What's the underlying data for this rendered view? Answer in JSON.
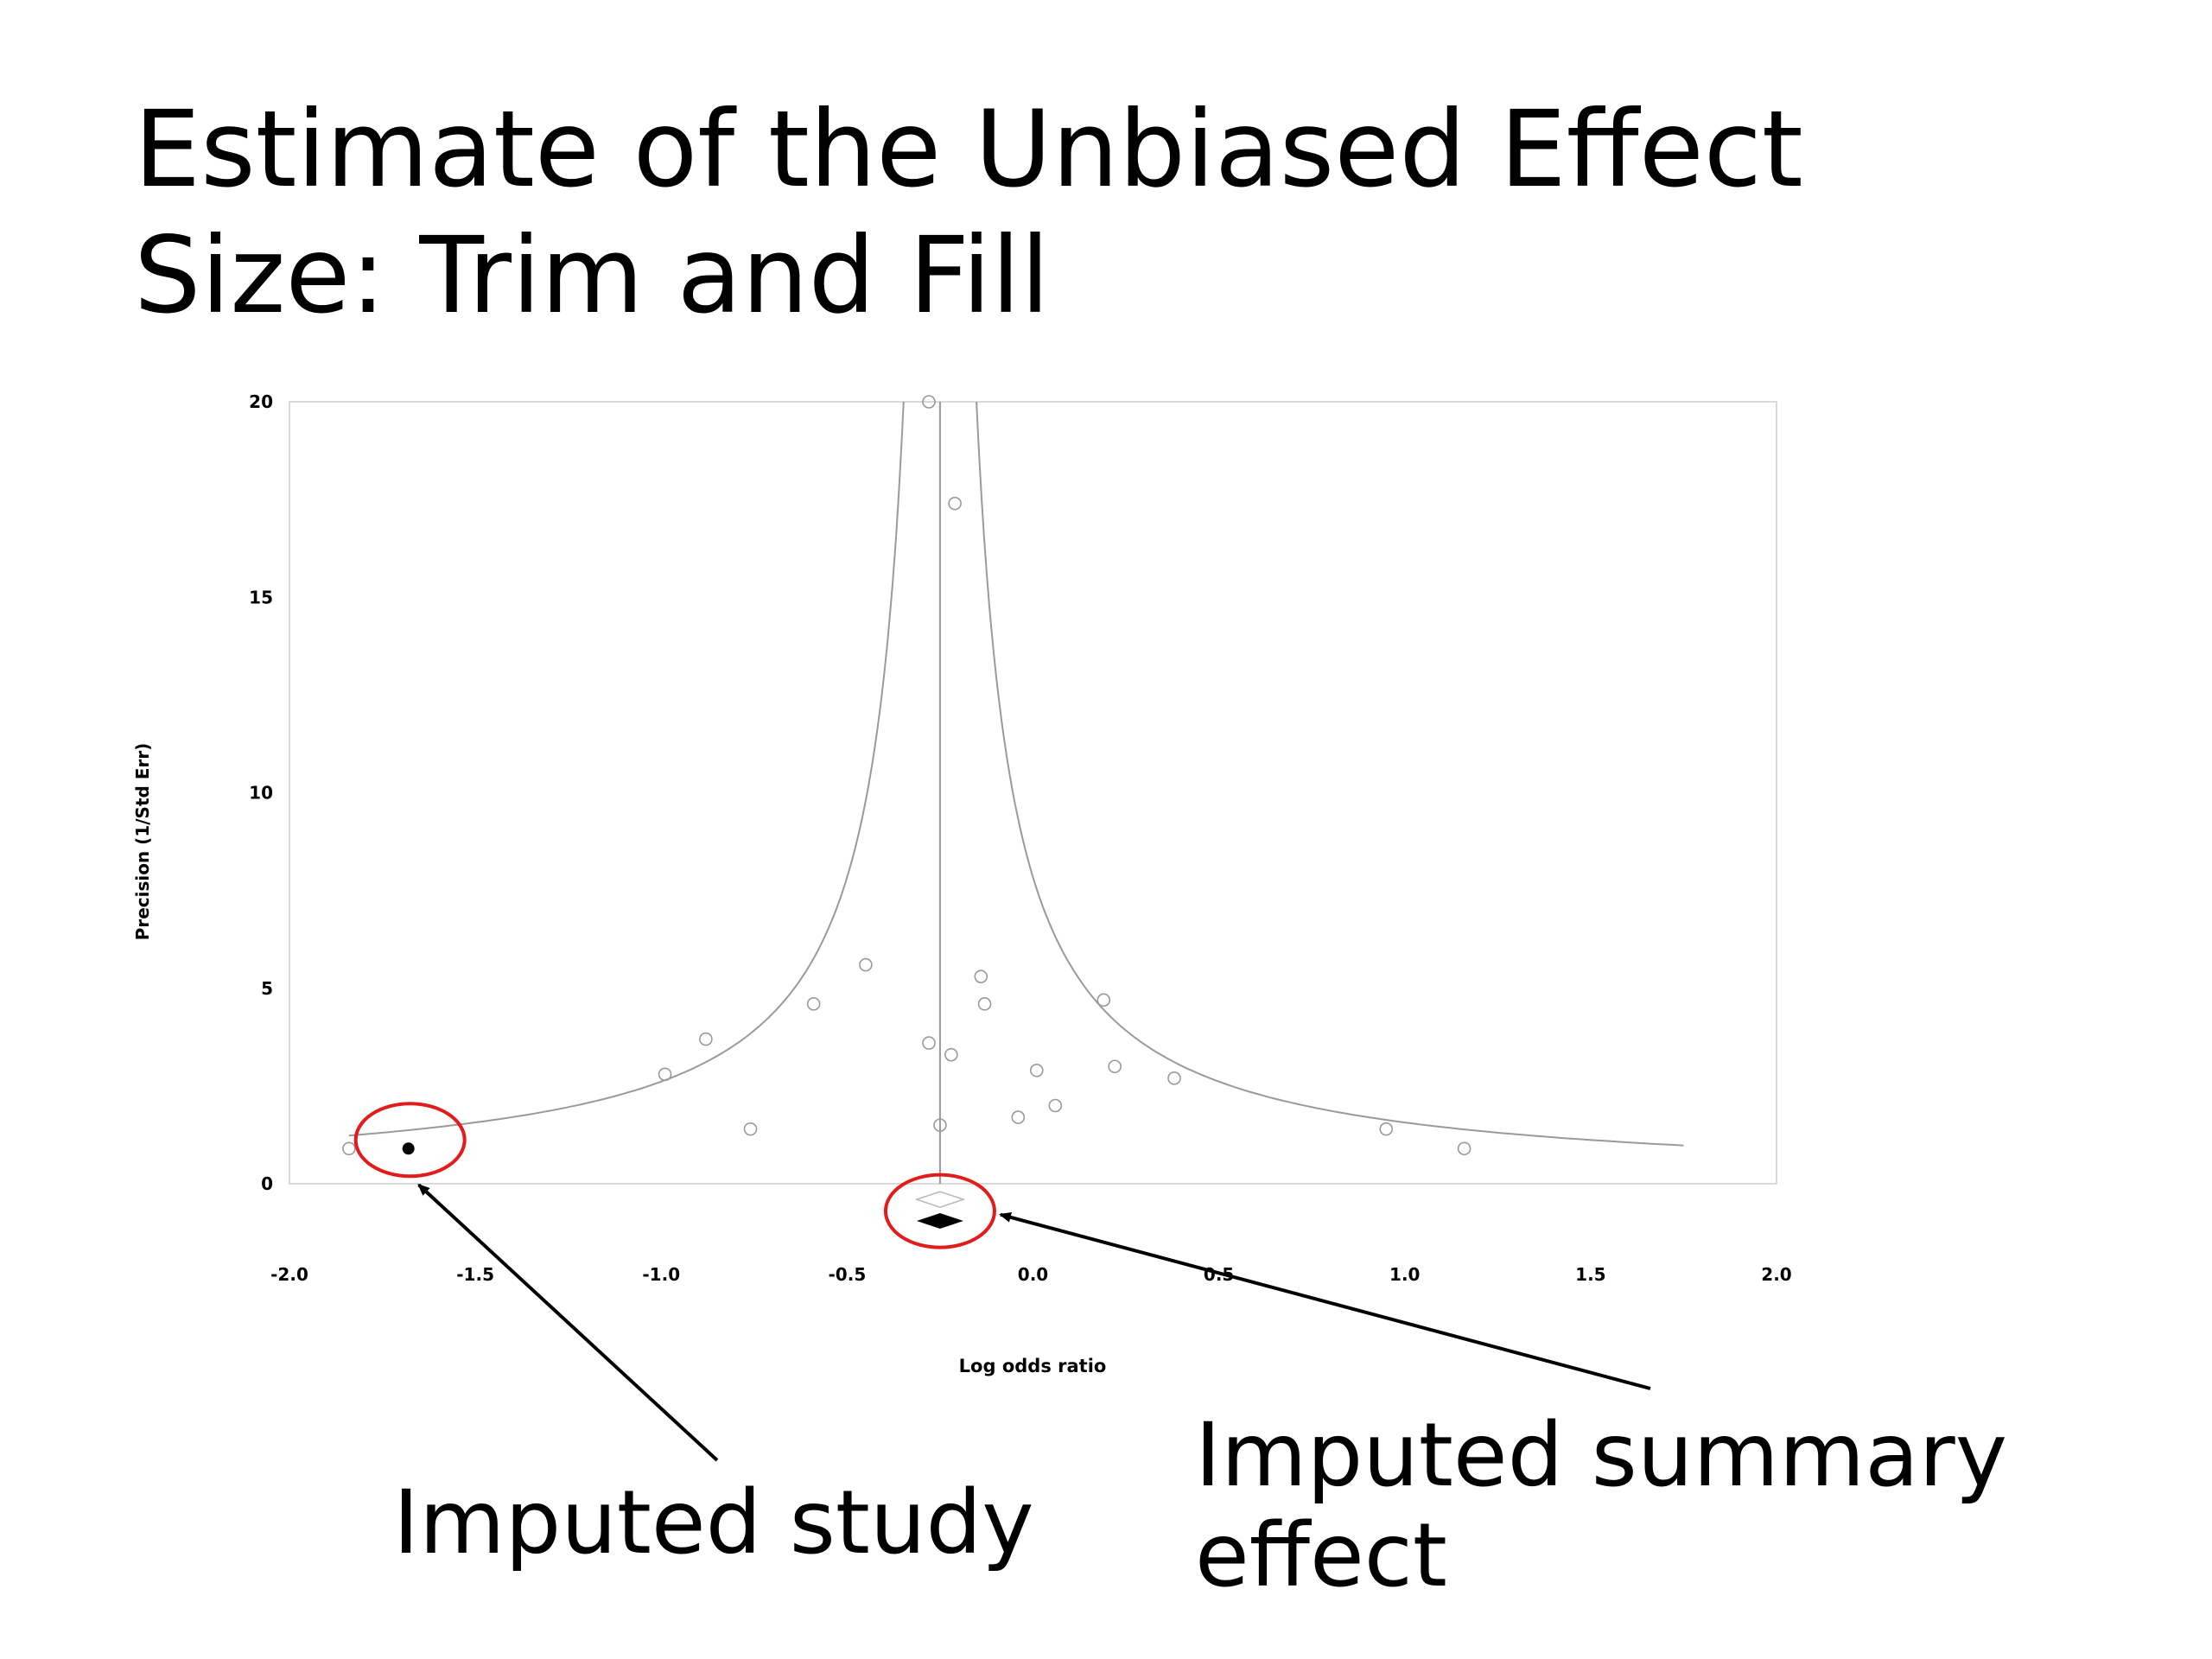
{
  "slide": {
    "title_line1": "Estimate of the Unbiased Effect",
    "title_line2": "Size: Trim and Fill"
  },
  "annotations": {
    "imputed_study": "Imputed study",
    "imputed_summary_line1": "Imputed summary",
    "imputed_summary_line2": "effect"
  },
  "colors": {
    "highlight_circle": "#e31b1b",
    "observed_marker": "#999999",
    "imputed_marker": "#000000",
    "funnel_line": "#9a9a9a"
  },
  "chart_data": {
    "type": "scatter",
    "xlabel": "Log odds ratio",
    "ylabel": "Precision (1/Std Err)",
    "xlim": [
      -2.0,
      2.0
    ],
    "ylim": [
      0,
      20
    ],
    "x_ticks": [
      "-2.0",
      "-1.5",
      "-1.0",
      "-0.5",
      "0.0",
      "0.5",
      "1.0",
      "1.5",
      "2.0"
    ],
    "y_ticks": [
      "0",
      "5",
      "10",
      "15",
      "20"
    ],
    "grid": false,
    "funnel_center": -0.25,
    "series": [
      {
        "marker": "open-circle",
        "points": [
          [
            -0.28,
            20.0
          ],
          [
            -0.21,
            17.4
          ],
          [
            -0.45,
            5.6
          ],
          [
            -0.59,
            4.6
          ],
          [
            -0.88,
            3.7
          ],
          [
            -0.99,
            2.8
          ],
          [
            -0.76,
            1.4
          ],
          [
            -0.28,
            3.6
          ],
          [
            -0.22,
            3.3
          ],
          [
            -0.14,
            5.3
          ],
          [
            -0.13,
            4.6
          ],
          [
            0.19,
            4.7
          ],
          [
            0.01,
            2.9
          ],
          [
            0.22,
            3.0
          ],
          [
            0.38,
            2.7
          ],
          [
            0.06,
            2.0
          ],
          [
            -0.04,
            1.7
          ],
          [
            -0.25,
            1.5
          ],
          [
            0.95,
            1.4
          ],
          [
            1.16,
            0.9
          ],
          [
            -1.84,
            0.9
          ]
        ]
      },
      {
        "marker": "filled-circle",
        "points": [
          [
            -1.68,
            0.9
          ]
        ]
      }
    ],
    "summary_effects": [
      {
        "marker": "open-diamond",
        "x": -0.25,
        "y": -0.4
      },
      {
        "marker": "filled-diamond",
        "x": -0.25,
        "y": -0.95
      }
    ],
    "highlights": [
      "imputed-study",
      "imputed-summary-effect"
    ]
  }
}
